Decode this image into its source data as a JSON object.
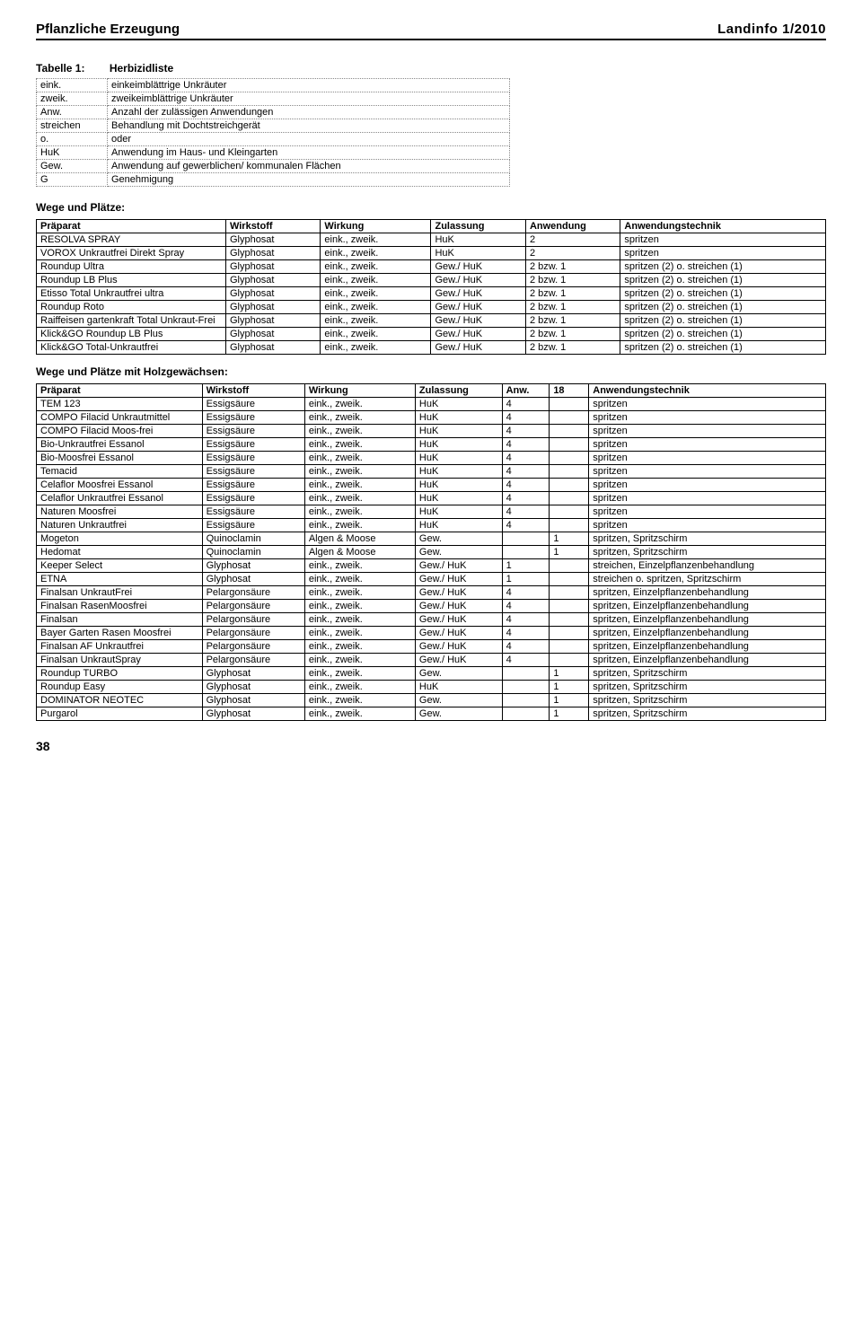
{
  "header": {
    "left": "Pflanzliche Erzeugung",
    "right": "Landinfo 1/2010"
  },
  "tableLabel": {
    "prefix": "Tabelle 1:",
    "caption": "Herbizidliste"
  },
  "legend": [
    {
      "abbr": "eink.",
      "desc": "einkeimblättrige Unkräuter"
    },
    {
      "abbr": "zweik.",
      "desc": "zweikeimblättrige Unkräuter"
    },
    {
      "abbr": "Anw.",
      "desc": "Anzahl der zulässigen Anwendungen"
    },
    {
      "abbr": "streichen",
      "desc": "Behandlung mit Dochtstreichgerät"
    },
    {
      "abbr": "o.",
      "desc": "oder"
    },
    {
      "abbr": "HuK",
      "desc": "Anwendung im Haus- und Kleingarten"
    },
    {
      "abbr": "Gew.",
      "desc": "Anwendung auf gewerblichen/ kommunalen Flächen"
    },
    {
      "abbr": "G",
      "desc": "Genehmigung"
    }
  ],
  "section1": {
    "title": "Wege und Plätze:",
    "headers": [
      "Präparat",
      "Wirkstoff",
      "Wirkung",
      "Zulassung",
      "Anwendung",
      "Anwendungstechnik"
    ],
    "rows": [
      [
        "RESOLVA SPRAY",
        "Glyphosat",
        "eink., zweik.",
        "HuK",
        "2",
        "spritzen"
      ],
      [
        "VOROX Unkrautfrei Direkt Spray",
        "Glyphosat",
        "eink., zweik.",
        "HuK",
        "2",
        "spritzen"
      ],
      [
        "Roundup Ultra",
        "Glyphosat",
        "eink., zweik.",
        "Gew./ HuK",
        "2 bzw. 1",
        "spritzen (2) o. streichen (1)"
      ],
      [
        "Roundup LB Plus",
        "Glyphosat",
        "eink., zweik.",
        "Gew./ HuK",
        "2 bzw. 1",
        "spritzen (2) o. streichen (1)"
      ],
      [
        "Etisso Total Unkrautfrei ultra",
        "Glyphosat",
        "eink., zweik.",
        "Gew./ HuK",
        "2 bzw. 1",
        "spritzen (2) o. streichen (1)"
      ],
      [
        "Roundup Roto",
        "Glyphosat",
        "eink., zweik.",
        "Gew./ HuK",
        "2 bzw. 1",
        "spritzen (2) o. streichen (1)"
      ],
      [
        "Raiffeisen gartenkraft Total Unkraut-Frei",
        "Glyphosat",
        "eink., zweik.",
        "Gew./ HuK",
        "2 bzw. 1",
        "spritzen (2) o. streichen (1)"
      ],
      [
        "Klick&GO Roundup LB Plus",
        "Glyphosat",
        "eink., zweik.",
        "Gew./ HuK",
        "2 bzw. 1",
        "spritzen (2) o. streichen (1)"
      ],
      [
        "Klick&GO Total-Unkrautfrei",
        "Glyphosat",
        "eink., zweik.",
        "Gew./ HuK",
        "2 bzw. 1",
        "spritzen (2) o. streichen (1)"
      ]
    ]
  },
  "section2": {
    "title": "Wege und Plätze mit Holzgewächsen:",
    "headers": [
      "Präparat",
      "Wirkstoff",
      "Wirkung",
      "Zulassung",
      "Anw.",
      "18",
      "Anwendungstechnik"
    ],
    "rows": [
      [
        "TEM 123",
        "Essigsäure",
        "eink., zweik.",
        "HuK",
        "4",
        "",
        "spritzen"
      ],
      [
        "COMPO Filacid Unkrautmittel",
        "Essigsäure",
        "eink., zweik.",
        "HuK",
        "4",
        "",
        "spritzen"
      ],
      [
        "COMPO Filacid Moos-frei",
        "Essigsäure",
        "eink., zweik.",
        "HuK",
        "4",
        "",
        "spritzen"
      ],
      [
        "Bio-Unkrautfrei Essanol",
        "Essigsäure",
        "eink., zweik.",
        "HuK",
        "4",
        "",
        "spritzen"
      ],
      [
        "Bio-Moosfrei Essanol",
        "Essigsäure",
        "eink., zweik.",
        "HuK",
        "4",
        "",
        "spritzen"
      ],
      [
        "Temacid",
        "Essigsäure",
        "eink., zweik.",
        "HuK",
        "4",
        "",
        "spritzen"
      ],
      [
        "Celaflor Moosfrei Essanol",
        "Essigsäure",
        "eink., zweik.",
        "HuK",
        "4",
        "",
        "spritzen"
      ],
      [
        "Celaflor Unkrautfrei Essanol",
        "Essigsäure",
        "eink., zweik.",
        "HuK",
        "4",
        "",
        "spritzen"
      ],
      [
        "Naturen Moosfrei",
        "Essigsäure",
        "eink., zweik.",
        "HuK",
        "4",
        "",
        "spritzen"
      ],
      [
        "Naturen Unkrautfrei",
        "Essigsäure",
        "eink., zweik.",
        "HuK",
        "4",
        "",
        "spritzen"
      ],
      [
        "Mogeton",
        "Quinoclamin",
        "Algen & Moose",
        "Gew.",
        "",
        "1",
        "spritzen, Spritzschirm"
      ],
      [
        "Hedomat",
        "Quinoclamin",
        "Algen & Moose",
        "Gew.",
        "",
        "1",
        "spritzen, Spritzschirm"
      ],
      [
        "Keeper Select",
        "Glyphosat",
        "eink., zweik.",
        "Gew./ HuK",
        "1",
        "",
        "streichen, Einzelpflanzenbehandlung"
      ],
      [
        "ETNA",
        "Glyphosat",
        "eink., zweik.",
        "Gew./ HuK",
        "1",
        "",
        "streichen o. spritzen, Spritzschirm"
      ],
      [
        "Finalsan UnkrautFrei",
        "Pelargonsäure",
        "eink., zweik.",
        "Gew./ HuK",
        "4",
        "",
        "spritzen, Einzelpflanzenbehandlung"
      ],
      [
        "Finalsan RasenMoosfrei",
        "Pelargonsäure",
        "eink., zweik.",
        "Gew./ HuK",
        "4",
        "",
        "spritzen, Einzelpflanzenbehandlung"
      ],
      [
        "Finalsan",
        "Pelargonsäure",
        "eink., zweik.",
        "Gew./ HuK",
        "4",
        "",
        "spritzen, Einzelpflanzenbehandlung"
      ],
      [
        "Bayer Garten Rasen Moosfrei",
        "Pelargonsäure",
        "eink., zweik.",
        "Gew./ HuK",
        "4",
        "",
        "spritzen, Einzelpflanzenbehandlung"
      ],
      [
        "Finalsan AF Unkrautfrei",
        "Pelargonsäure",
        "eink., zweik.",
        "Gew./ HuK",
        "4",
        "",
        "spritzen, Einzelpflanzenbehandlung"
      ],
      [
        "Finalsan UnkrautSpray",
        "Pelargonsäure",
        "eink., zweik.",
        "Gew./ HuK",
        "4",
        "",
        "spritzen, Einzelpflanzenbehandlung"
      ],
      [
        "Roundup TURBO",
        "Glyphosat",
        "eink., zweik.",
        "Gew.",
        "",
        "1",
        "spritzen, Spritzschirm"
      ],
      [
        "Roundup Easy",
        "Glyphosat",
        "eink., zweik.",
        "HuK",
        "",
        "1",
        "spritzen, Spritzschirm"
      ],
      [
        "DOMINATOR NEOTEC",
        "Glyphosat",
        "eink., zweik.",
        "Gew.",
        "",
        "1",
        "spritzen, Spritzschirm"
      ],
      [
        "Purgarol",
        "Glyphosat",
        "eink., zweik.",
        "Gew.",
        "",
        "1",
        "spritzen, Spritzschirm"
      ]
    ]
  },
  "pageNumber": "38",
  "colWidths1": [
    "24%",
    "12%",
    "14%",
    "12%",
    "12%",
    "26%"
  ],
  "colWidths2": [
    "21%",
    "13%",
    "14%",
    "11%",
    "6%",
    "5%",
    "30%"
  ]
}
